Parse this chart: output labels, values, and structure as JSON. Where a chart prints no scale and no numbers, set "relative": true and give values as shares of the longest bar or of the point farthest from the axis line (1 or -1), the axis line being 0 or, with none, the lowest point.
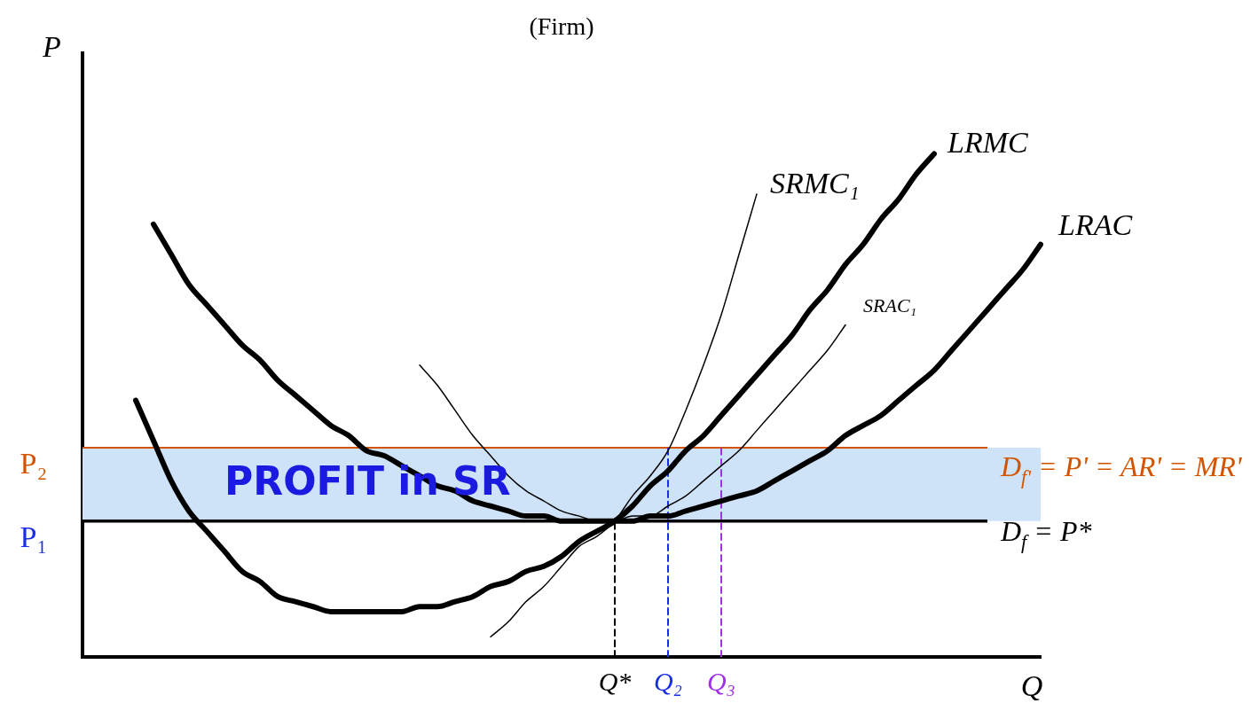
{
  "chart_data": {
    "type": "line",
    "title": "(Firm)",
    "xlabel": "Q",
    "ylabel": "P",
    "relative": true,
    "categories": [
      null,
      null,
      null,
      null,
      null,
      null,
      null,
      null,
      null,
      null,
      null,
      null,
      null,
      null,
      null,
      null,
      null,
      null,
      null,
      null,
      null,
      null,
      null,
      null,
      null,
      null,
      null,
      null,
      null,
      null,
      "Q*",
      null,
      null,
      "Q₂",
      null,
      null,
      "Q₃",
      null,
      null,
      null,
      null,
      null,
      null,
      null,
      null,
      null,
      null,
      null,
      null,
      null,
      null,
      null,
      null,
      null,
      null
    ],
    "series": [
      {
        "name": "LRMC",
        "color": "#000000",
        "values": [
          null,
          null,
          null,
          0.51,
          0.43,
          0.35,
          0.29,
          0.25,
          0.21,
          0.17,
          0.15,
          0.12,
          0.11,
          0.1,
          0.09,
          0.09,
          0.09,
          0.09,
          0.09,
          0.1,
          0.1,
          0.11,
          0.12,
          0.14,
          0.15,
          0.17,
          0.18,
          0.2,
          0.23,
          0.25,
          0.27,
          0.3,
          0.34,
          0.37,
          0.41,
          0.44,
          0.48,
          0.52,
          0.56,
          0.6,
          0.64,
          0.69,
          0.73,
          0.78,
          0.82,
          0.87,
          0.91,
          0.96,
          1.0,
          null,
          null,
          null,
          null,
          null,
          null
        ]
      },
      {
        "name": "LRAC",
        "color": "#000000",
        "values": [
          null,
          null,
          null,
          null,
          0.86,
          0.8,
          0.74,
          0.7,
          0.66,
          0.62,
          0.59,
          0.55,
          0.52,
          0.49,
          0.46,
          0.44,
          0.41,
          0.4,
          0.38,
          0.36,
          0.34,
          0.33,
          0.31,
          0.3,
          0.29,
          0.28,
          0.28,
          0.27,
          0.27,
          0.27,
          0.27,
          0.27,
          0.28,
          0.28,
          0.29,
          0.3,
          0.31,
          0.32,
          0.33,
          0.35,
          0.37,
          0.39,
          0.41,
          0.44,
          0.46,
          0.48,
          0.51,
          0.54,
          0.57,
          0.61,
          0.65,
          0.69,
          0.73,
          0.77,
          0.82
        ]
      },
      {
        "name": "SRMC₁",
        "color": "#000000",
        "values": [
          null,
          null,
          null,
          null,
          null,
          null,
          null,
          null,
          null,
          null,
          null,
          null,
          null,
          null,
          null,
          null,
          null,
          null,
          null,
          null,
          null,
          null,
          null,
          0.04,
          0.07,
          0.11,
          0.14,
          0.18,
          0.22,
          0.24,
          0.27,
          0.32,
          0.36,
          0.41,
          0.49,
          0.58,
          0.68,
          0.8,
          0.92,
          null,
          null,
          null,
          null,
          null,
          null,
          null,
          null,
          null,
          null,
          null,
          null,
          null,
          null,
          null,
          null
        ]
      },
      {
        "name": "SRAC₁",
        "color": "#000000",
        "values": [
          null,
          null,
          null,
          null,
          null,
          null,
          null,
          null,
          null,
          null,
          null,
          null,
          null,
          null,
          null,
          null,
          null,
          null,
          null,
          0.58,
          0.54,
          0.49,
          0.44,
          0.4,
          0.36,
          0.33,
          0.31,
          0.29,
          0.28,
          0.27,
          0.27,
          0.28,
          0.28,
          0.3,
          0.32,
          0.35,
          0.38,
          0.41,
          0.45,
          0.49,
          0.53,
          0.57,
          0.61,
          0.66,
          null,
          null,
          null,
          null,
          null,
          null,
          null,
          null,
          null,
          null,
          null
        ]
      },
      {
        "color": "#000000",
        "line_style": "dashed",
        "x": [
          "Q*",
          "Q*"
        ],
        "values": [
          0,
          0.27
        ]
      },
      {
        "color": "#1a2ee8",
        "line_style": "dashed",
        "x": [
          "Q₂",
          "Q₂"
        ],
        "values": [
          0,
          0.416
        ]
      },
      {
        "color": "#a030e8",
        "line_style": "dashed",
        "x": [
          "Q₃",
          "Q₃"
        ],
        "values": [
          0,
          0.416
        ]
      }
    ],
    "ref_lines": [
      {
        "axis": "y",
        "value": 0.27,
        "label": "D$_{f}$ = P*",
        "color": "#000000"
      },
      {
        "axis": "y",
        "value": 0.416,
        "label": "D$_{f'}$ = P' = AR' = MR'",
        "color": "#d35400"
      }
    ],
    "bands": [
      {
        "axis": "y",
        "from": 0.27,
        "to": 0.416,
        "label": "PROFIT in SR",
        "color": "#cfe3f8"
      }
    ],
    "annotations": [
      "P₂",
      "P₁"
    ]
  }
}
